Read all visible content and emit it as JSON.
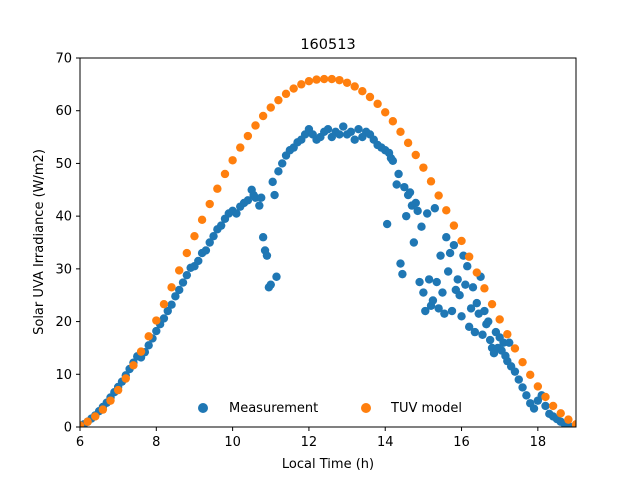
{
  "chart_data": {
    "type": "scatter",
    "title": "160513",
    "xlabel": "Local Time (h)",
    "ylabel": "Solar UVA Irradiance (W/m2)",
    "xlim": [
      6,
      19
    ],
    "ylim": [
      0,
      70
    ],
    "xticks": [
      6,
      8,
      10,
      12,
      14,
      16,
      18
    ],
    "yticks": [
      0,
      10,
      20,
      30,
      40,
      50,
      60,
      70
    ],
    "grid": false,
    "legend_position": "lower center",
    "series": [
      {
        "name": "Measurement",
        "color": "#1f77b4",
        "x": [
          6.1,
          6.2,
          6.3,
          6.4,
          6.5,
          6.6,
          6.7,
          6.8,
          6.9,
          7.0,
          7.1,
          7.2,
          7.3,
          7.4,
          7.5,
          7.6,
          7.7,
          7.8,
          7.9,
          8.0,
          8.1,
          8.2,
          8.3,
          8.4,
          8.5,
          8.6,
          8.7,
          8.8,
          8.9,
          9.0,
          9.1,
          9.2,
          9.3,
          9.4,
          9.5,
          9.6,
          9.7,
          9.8,
          9.9,
          10.0,
          10.1,
          10.2,
          10.3,
          10.4,
          10.5,
          10.55,
          10.6,
          10.7,
          10.75,
          10.8,
          10.85,
          10.9,
          10.95,
          11.0,
          11.05,
          11.1,
          11.15,
          11.2,
          11.3,
          11.4,
          11.5,
          11.6,
          11.7,
          11.8,
          11.9,
          12.0,
          12.1,
          12.2,
          12.3,
          12.4,
          12.5,
          12.6,
          12.7,
          12.8,
          12.9,
          13.0,
          13.1,
          13.2,
          13.3,
          13.4,
          13.5,
          13.6,
          13.7,
          13.8,
          13.9,
          14.0,
          14.05,
          14.1,
          14.15,
          14.2,
          14.3,
          14.35,
          14.4,
          14.45,
          14.5,
          14.55,
          14.6,
          14.65,
          14.7,
          14.75,
          14.8,
          14.85,
          14.9,
          14.95,
          15.0,
          15.05,
          15.1,
          15.15,
          15.2,
          15.25,
          15.3,
          15.35,
          15.4,
          15.45,
          15.5,
          15.55,
          15.6,
          15.65,
          15.7,
          15.75,
          15.8,
          15.85,
          15.9,
          15.95,
          16.0,
          16.05,
          16.1,
          16.15,
          16.2,
          16.25,
          16.3,
          16.35,
          16.4,
          16.45,
          16.5,
          16.55,
          16.6,
          16.65,
          16.7,
          16.75,
          16.8,
          16.85,
          16.9,
          16.95,
          17.0,
          17.05,
          17.1,
          17.15,
          17.2,
          17.25,
          17.3,
          17.4,
          17.5,
          17.6,
          17.7,
          17.8,
          17.9,
          18.0,
          18.1,
          18.2,
          18.3,
          18.4,
          18.5,
          18.6,
          18.7,
          18.8
        ],
        "y": [
          0.5,
          1.0,
          1.6,
          2.2,
          3.0,
          3.8,
          4.6,
          5.6,
          6.6,
          7.6,
          8.6,
          9.8,
          11.0,
          12.2,
          13.4,
          13.2,
          14.2,
          15.5,
          16.8,
          18.2,
          19.5,
          20.6,
          22.0,
          23.2,
          24.8,
          26.0,
          27.4,
          28.8,
          30.2,
          30.5,
          31.5,
          33.0,
          33.5,
          35.0,
          36.2,
          37.5,
          38.2,
          39.5,
          40.5,
          41.0,
          40.5,
          41.8,
          42.5,
          43.0,
          45.0,
          44.0,
          43.5,
          42.0,
          43.5,
          36.0,
          33.5,
          32.5,
          26.5,
          27.0,
          46.5,
          44.0,
          28.5,
          48.5,
          50.0,
          51.5,
          52.5,
          53.0,
          54.0,
          54.5,
          55.5,
          56.5,
          55.5,
          54.5,
          55.0,
          56.0,
          56.5,
          55.0,
          56.0,
          55.5,
          57.0,
          55.5,
          56.0,
          54.5,
          56.5,
          55.0,
          56.0,
          55.5,
          54.5,
          53.5,
          53.0,
          52.5,
          38.5,
          52.0,
          51.0,
          50.5,
          46.0,
          48.0,
          31.0,
          29.0,
          45.5,
          40.0,
          44.0,
          44.5,
          42.0,
          35.0,
          42.5,
          41.0,
          27.5,
          38.0,
          25.5,
          22.0,
          40.5,
          28.0,
          23.0,
          24.0,
          41.5,
          27.5,
          22.5,
          32.5,
          25.5,
          21.5,
          36.0,
          29.5,
          33.0,
          22.0,
          34.5,
          26.0,
          28.0,
          25.0,
          21.0,
          32.5,
          27.0,
          30.5,
          19.0,
          22.5,
          26.5,
          18.0,
          23.5,
          21.5,
          28.5,
          17.5,
          22.0,
          19.5,
          20.0,
          16.5,
          15.0,
          14.0,
          18.0,
          15.0,
          17.0,
          14.5,
          16.0,
          13.5,
          12.5,
          16.0,
          11.5,
          10.5,
          9.0,
          7.5,
          6.0,
          4.5,
          3.5,
          5.0,
          6.0,
          4.0,
          2.5,
          2.0,
          1.5,
          1.0,
          0.6,
          0.3
        ]
      },
      {
        "name": "TUV model",
        "color": "#ff7f0e",
        "x": [
          6.0,
          6.2,
          6.4,
          6.6,
          6.8,
          7.0,
          7.2,
          7.4,
          7.6,
          7.8,
          8.0,
          8.2,
          8.4,
          8.6,
          8.8,
          9.0,
          9.2,
          9.4,
          9.6,
          9.8,
          10.0,
          10.2,
          10.4,
          10.6,
          10.8,
          11.0,
          11.2,
          11.4,
          11.6,
          11.8,
          12.0,
          12.2,
          12.4,
          12.6,
          12.8,
          13.0,
          13.2,
          13.4,
          13.6,
          13.8,
          14.0,
          14.2,
          14.4,
          14.6,
          14.8,
          15.0,
          15.2,
          15.4,
          15.6,
          15.8,
          16.0,
          16.2,
          16.4,
          16.6,
          16.8,
          17.0,
          17.2,
          17.4,
          17.6,
          17.8,
          18.0,
          18.2,
          18.4,
          18.6,
          18.8,
          19.0
        ],
        "y": [
          0.3,
          1.0,
          2.0,
          3.3,
          5.0,
          7.0,
          9.2,
          11.7,
          14.3,
          17.2,
          20.2,
          23.3,
          26.5,
          29.7,
          33.0,
          36.2,
          39.3,
          42.3,
          45.2,
          48.0,
          50.6,
          53.0,
          55.2,
          57.2,
          59.0,
          60.6,
          62.0,
          63.2,
          64.2,
          65.0,
          65.6,
          65.9,
          66.0,
          66.0,
          65.8,
          65.3,
          64.6,
          63.7,
          62.6,
          61.3,
          59.7,
          58.0,
          56.0,
          53.9,
          51.6,
          49.2,
          46.6,
          43.9,
          41.1,
          38.2,
          35.3,
          32.3,
          29.3,
          26.3,
          23.3,
          20.4,
          17.6,
          14.9,
          12.3,
          9.9,
          7.7,
          5.7,
          4.0,
          2.6,
          1.4,
          0.5
        ]
      }
    ]
  }
}
